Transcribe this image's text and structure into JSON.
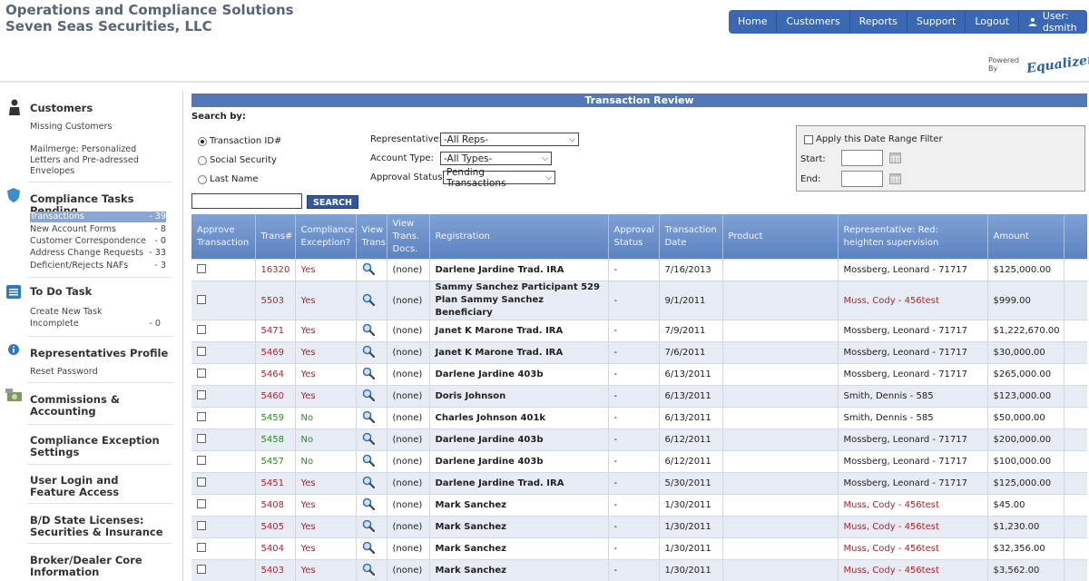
{
  "header": {
    "title_line1": "Operations and Compliance Solutions",
    "title_line2": "Seven Seas Securities, LLC",
    "nav": [
      "Home",
      "Customers",
      "Reports",
      "Support",
      "Logout"
    ],
    "user_label": "User: dsmith",
    "powered_by": "Powered By",
    "logo_text": "Equalizer"
  },
  "sidebar": {
    "customers": {
      "title": "Customers",
      "missing": "Missing Customers",
      "mailmerge": "Mailmerge: Personalized Letters and Pre-adressed Envelopes"
    },
    "compliance": {
      "title": "Compliance Tasks Pending",
      "items": [
        {
          "label": "Transactions",
          "count": "- 39"
        },
        {
          "label": "New Account Forms",
          "count": "- 8"
        },
        {
          "label": "Customer Correspondence",
          "count": "- 0"
        },
        {
          "label": "Address Change Requests",
          "count": "- 33"
        },
        {
          "label": "Deficient/Rejects NAFs",
          "count": "- 3"
        }
      ]
    },
    "todo": {
      "title": "To Do Task",
      "create": "Create New Task",
      "incomplete": "Incomplete",
      "incomplete_count": "- 0"
    },
    "reps": {
      "title": "Representatives Profile",
      "reset": "Reset Password"
    },
    "commissions": {
      "title": "Commissions & Accounting"
    },
    "exception": {
      "title": "Compliance Exception Settings"
    },
    "userlogin": {
      "title": "User Login and Feature Access"
    },
    "bd_state": {
      "title": "B/D State Licenses: Securities & Insurance"
    },
    "core": {
      "title": "Broker/Dealer Core Information"
    }
  },
  "main": {
    "section_title": "Transaction Review",
    "search_by": "Search by:",
    "radios": [
      "Transaction ID#",
      "Social Security",
      "Last Name"
    ],
    "filters": {
      "rep_label": "Representative:",
      "rep_value": "-All Reps-",
      "acct_label": "Account Type:",
      "acct_value": "-All Types-",
      "status_label": "Approval Status:",
      "status_value": "Pending Transactions"
    },
    "search_button": "SEARCH",
    "date_filter": {
      "check_label": "Apply this Date Range Filter",
      "start_label": "Start:",
      "end_label": "End:"
    }
  },
  "table": {
    "headers": [
      "Approve Transaction",
      "Trans#",
      "Compliance Exception?",
      "View Trans",
      "View Trans. Docs.",
      "Registration",
      "Approval Status",
      "Transaction Date",
      "Product",
      "Representative: Red: heighten supervision",
      "Amount"
    ],
    "rows": [
      {
        "trans": "16320",
        "exc": "Yes",
        "docs": "(none)",
        "reg": "Darlene Jardine Trad. IRA",
        "status": "-",
        "date": "7/16/2013",
        "rep": "Mossberg, Leonard - 71717",
        "rep_red": false,
        "amount": "$125,000.00"
      },
      {
        "trans": "5503",
        "exc": "Yes",
        "docs": "(none)",
        "reg": "Sammy Sanchez Participant 529 Plan Sammy Sanchez Beneficiary",
        "status": "-",
        "date": "9/1/2011",
        "rep": "Muss, Cody - 456test",
        "rep_red": true,
        "amount": "$999.00"
      },
      {
        "trans": "5471",
        "exc": "Yes",
        "docs": "(none)",
        "reg": "Janet K Marone Trad. IRA",
        "status": "-",
        "date": "7/9/2011",
        "rep": "Mossberg, Leonard - 71717",
        "rep_red": false,
        "amount": "$1,222,670.00"
      },
      {
        "trans": "5469",
        "exc": "Yes",
        "docs": "(none)",
        "reg": "Janet K Marone Trad. IRA",
        "status": "-",
        "date": "7/6/2011",
        "rep": "Mossberg, Leonard - 71717",
        "rep_red": false,
        "amount": "$30,000.00"
      },
      {
        "trans": "5464",
        "exc": "Yes",
        "docs": "(none)",
        "reg": "Darlene Jardine 403b",
        "status": "-",
        "date": "6/13/2011",
        "rep": "Mossberg, Leonard - 71717",
        "rep_red": false,
        "amount": "$265,000.00"
      },
      {
        "trans": "5460",
        "exc": "Yes",
        "docs": "(none)",
        "reg": "Doris Johnson",
        "status": "-",
        "date": "6/13/2011",
        "rep": "Smith, Dennis - 585",
        "rep_red": false,
        "amount": "$123,000.00"
      },
      {
        "trans": "5459",
        "exc": "No",
        "docs": "(none)",
        "reg": "Charles Johnson 401k",
        "status": "-",
        "date": "6/13/2011",
        "rep": "Smith, Dennis - 585",
        "rep_red": false,
        "amount": "$50,000.00"
      },
      {
        "trans": "5458",
        "exc": "No",
        "docs": "(none)",
        "reg": "Darlene Jardine 403b",
        "status": "-",
        "date": "6/12/2011",
        "rep": "Mossberg, Leonard - 71717",
        "rep_red": false,
        "amount": "$200,000.00"
      },
      {
        "trans": "5457",
        "exc": "No",
        "docs": "(none)",
        "reg": "Darlene Jardine 403b",
        "status": "-",
        "date": "6/12/2011",
        "rep": "Mossberg, Leonard - 71717",
        "rep_red": false,
        "amount": "$100,000.00"
      },
      {
        "trans": "5451",
        "exc": "Yes",
        "docs": "(none)",
        "reg": "Darlene Jardine Trad. IRA",
        "status": "-",
        "date": "5/30/2011",
        "rep": "Mossberg, Leonard - 71717",
        "rep_red": false,
        "amount": "$125,000.00"
      },
      {
        "trans": "5408",
        "exc": "Yes",
        "docs": "(none)",
        "reg": "Mark Sanchez",
        "status": "-",
        "date": "1/30/2011",
        "rep": "Muss, Cody - 456test",
        "rep_red": true,
        "amount": "$45.00"
      },
      {
        "trans": "5405",
        "exc": "Yes",
        "docs": "(none)",
        "reg": "Mark Sanchez",
        "status": "-",
        "date": "1/30/2011",
        "rep": "Muss, Cody - 456test",
        "rep_red": true,
        "amount": "$1,230.00"
      },
      {
        "trans": "5404",
        "exc": "Yes",
        "docs": "(none)",
        "reg": "Mark Sanchez",
        "status": "-",
        "date": "1/30/2011",
        "rep": "Muss, Cody - 456test",
        "rep_red": true,
        "amount": "$32,356.00"
      },
      {
        "trans": "5403",
        "exc": "Yes",
        "docs": "(none)",
        "reg": "Mark Sanchez",
        "status": "-",
        "date": "1/30/2011",
        "rep": "Muss, Cody - 456test",
        "rep_red": true,
        "amount": "$3,562.00"
      }
    ]
  }
}
